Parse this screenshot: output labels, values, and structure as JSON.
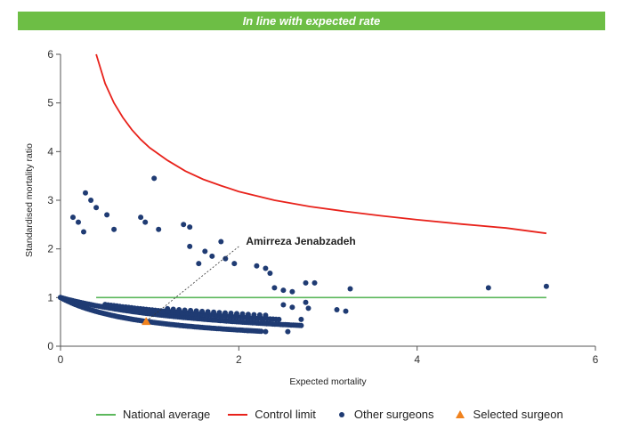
{
  "banner": {
    "text": "In line with expected rate",
    "color": "#6dbe45"
  },
  "chart_data": {
    "type": "scatter",
    "title": "In line with expected rate",
    "xlabel": "Expected mortality",
    "ylabel": "Standardised mortality ratio",
    "xlim": [
      0,
      6
    ],
    "ylim": [
      0,
      6
    ],
    "x_ticks": [
      "0",
      "2",
      "4",
      "6"
    ],
    "y_ticks": [
      "0",
      "1",
      "2",
      "3",
      "4",
      "5",
      "6"
    ],
    "grid": false,
    "legend_position": "bottom",
    "national_average": {
      "name": "National average",
      "y": 1,
      "x_range": [
        0.4,
        5.45
      ],
      "color": "#5cb85c"
    },
    "control_limit": {
      "name": "Control limit",
      "color": "#e8221b",
      "points": [
        [
          0.4,
          6.0
        ],
        [
          0.5,
          5.4
        ],
        [
          0.6,
          5.0
        ],
        [
          0.7,
          4.7
        ],
        [
          0.8,
          4.45
        ],
        [
          0.9,
          4.25
        ],
        [
          1.0,
          4.08
        ],
        [
          1.2,
          3.82
        ],
        [
          1.4,
          3.6
        ],
        [
          1.6,
          3.43
        ],
        [
          1.8,
          3.3
        ],
        [
          2.0,
          3.18
        ],
        [
          2.4,
          3.0
        ],
        [
          2.8,
          2.87
        ],
        [
          3.2,
          2.77
        ],
        [
          3.6,
          2.68
        ],
        [
          4.0,
          2.6
        ],
        [
          4.5,
          2.51
        ],
        [
          5.0,
          2.43
        ],
        [
          5.45,
          2.32
        ]
      ]
    },
    "other_surgeons": {
      "name": "Other surgeons",
      "color": "#1f3b73",
      "curves": [
        {
          "k": 1,
          "x_range": [
            0.0,
            2.25
          ],
          "n": 110
        },
        {
          "k": 2,
          "x_range": [
            0.0,
            2.7
          ],
          "n": 120
        },
        {
          "k": 3,
          "x_range": [
            0.5,
            2.45
          ],
          "n": 60
        },
        {
          "k": 4,
          "x_range": [
            1.2,
            2.3
          ],
          "n": 18
        }
      ],
      "points": [
        [
          0.14,
          2.65
        ],
        [
          0.2,
          2.55
        ],
        [
          0.26,
          2.35
        ],
        [
          0.28,
          3.15
        ],
        [
          0.34,
          3.0
        ],
        [
          0.4,
          2.85
        ],
        [
          0.52,
          2.7
        ],
        [
          0.6,
          2.4
        ],
        [
          0.9,
          2.65
        ],
        [
          0.95,
          2.55
        ],
        [
          1.05,
          3.45
        ],
        [
          1.1,
          2.4
        ],
        [
          1.38,
          2.5
        ],
        [
          1.45,
          2.45
        ],
        [
          1.45,
          2.05
        ],
        [
          1.55,
          1.7
        ],
        [
          1.62,
          1.95
        ],
        [
          1.7,
          1.85
        ],
        [
          1.8,
          2.15
        ],
        [
          1.85,
          1.8
        ],
        [
          1.95,
          1.7
        ],
        [
          2.2,
          1.65
        ],
        [
          2.3,
          1.6
        ],
        [
          2.35,
          1.5
        ],
        [
          2.4,
          1.2
        ],
        [
          2.5,
          1.15
        ],
        [
          2.6,
          1.12
        ],
        [
          2.75,
          1.3
        ],
        [
          2.85,
          1.3
        ],
        [
          3.25,
          1.18
        ],
        [
          3.1,
          0.75
        ],
        [
          3.2,
          0.72
        ],
        [
          2.5,
          0.85
        ],
        [
          2.6,
          0.8
        ],
        [
          2.75,
          0.9
        ],
        [
          2.78,
          0.78
        ],
        [
          2.7,
          0.55
        ],
        [
          2.55,
          0.3
        ],
        [
          2.3,
          0.3
        ],
        [
          2.1,
          0.32
        ],
        [
          4.8,
          1.2
        ],
        [
          5.45,
          1.23
        ]
      ]
    },
    "selected_surgeon": {
      "name": "Selected surgeon",
      "x": 0.96,
      "y": 0.51,
      "label": "Amirreza Jenabzadeh",
      "color": "#f0821e"
    }
  },
  "legend": [
    {
      "label": "National average",
      "kind": "line",
      "color": "#5cb85c"
    },
    {
      "label": "Control limit",
      "kind": "line",
      "color": "#e8221b"
    },
    {
      "label": "Other surgeons",
      "kind": "dot",
      "color": "#1f3b73"
    },
    {
      "label": "Selected surgeon",
      "kind": "triangle",
      "color": "#f0821e"
    }
  ]
}
